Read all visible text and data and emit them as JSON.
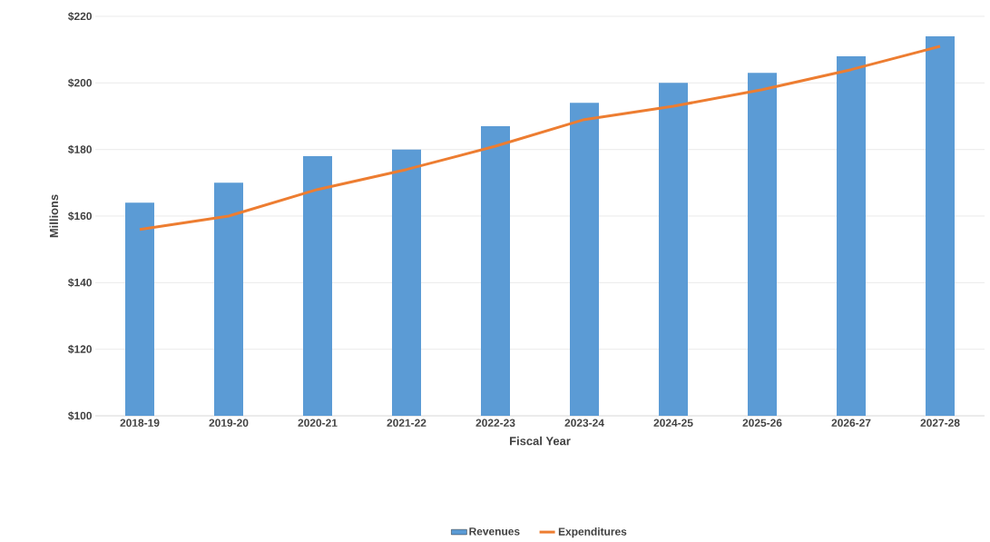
{
  "chart_data": {
    "type": "bar",
    "xlabel": "Fiscal Year",
    "ylabel": "Millions",
    "categories": [
      "2018-19",
      "2019-20",
      "2020-21",
      "2021-22",
      "2022-23",
      "2023-24",
      "2024-25",
      "2025-26",
      "2026-27",
      "2027-28"
    ],
    "series": [
      {
        "name": "Revenues",
        "color": "#5b9bd5",
        "values": [
          164,
          170,
          178,
          180,
          187,
          194,
          200,
          203,
          208,
          214
        ]
      },
      {
        "name": "Expenditures",
        "type": "line",
        "color": "#ed7d31",
        "values": [
          156,
          160,
          168,
          174,
          181,
          189,
          193,
          198,
          204,
          211
        ]
      }
    ],
    "ylim": [
      100,
      220
    ],
    "yticks": [
      {
        "value": 100,
        "label": "$100"
      },
      {
        "value": 120,
        "label": "$120"
      },
      {
        "value": 140,
        "label": "$140"
      },
      {
        "value": 160,
        "label": "$160"
      },
      {
        "value": 180,
        "label": "$180"
      },
      {
        "value": 200,
        "label": "$200"
      },
      {
        "value": 220,
        "label": "$220"
      }
    ],
    "grid": "y",
    "legend": "bottom",
    "marker": "none",
    "line_style": "solid"
  }
}
